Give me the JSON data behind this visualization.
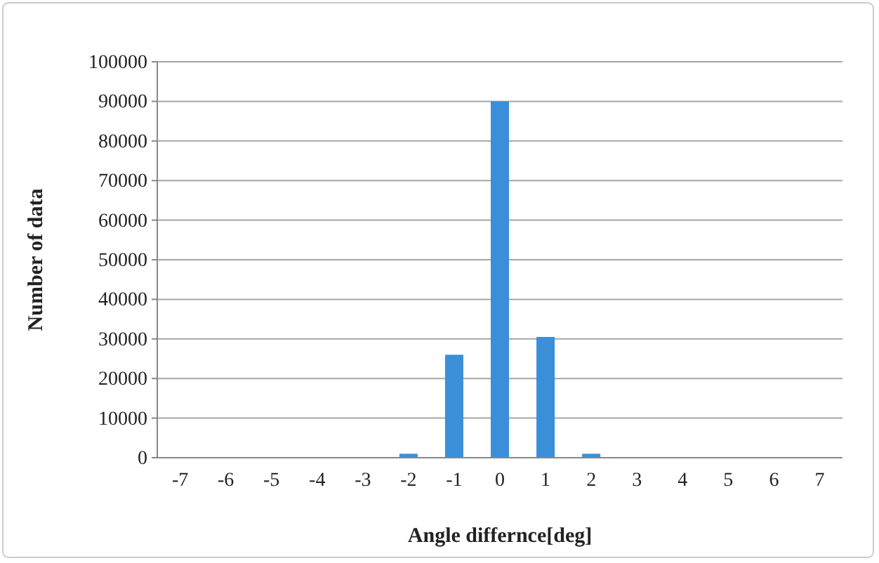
{
  "chart_data": {
    "type": "bar",
    "xlabel": "Angle differnce[deg]",
    "ylabel": "Number of data",
    "categories": [
      "-7",
      "-6",
      "-5",
      "-4",
      "-3",
      "-2",
      "-1",
      "0",
      "1",
      "2",
      "3",
      "4",
      "5",
      "6",
      "7"
    ],
    "values": [
      0,
      0,
      0,
      0,
      0,
      1000,
      26000,
      90000,
      30500,
      1000,
      0,
      0,
      0,
      0,
      0
    ],
    "color": "#3a8fd8",
    "ylim": [
      0,
      100000
    ],
    "yticks": [
      0,
      10000,
      20000,
      30000,
      40000,
      50000,
      60000,
      70000,
      80000,
      90000,
      100000
    ],
    "grid": "y"
  }
}
